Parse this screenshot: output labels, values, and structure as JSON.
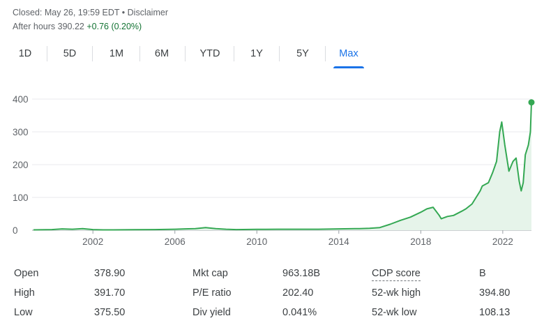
{
  "header": {
    "closed_text": "Closed: May 26, 19:59 EDT • Disclaimer",
    "after_hours_label": "After hours 390.22",
    "after_hours_change": "+0.76 (0.20%)"
  },
  "tabs": [
    {
      "label": "1D",
      "active": false
    },
    {
      "label": "5D",
      "active": false
    },
    {
      "label": "1M",
      "active": false
    },
    {
      "label": "6M",
      "active": false
    },
    {
      "label": "YTD",
      "active": false
    },
    {
      "label": "1Y",
      "active": false
    },
    {
      "label": "5Y",
      "active": false
    },
    {
      "label": "Max",
      "active": true
    }
  ],
  "colors": {
    "line": "#34a853",
    "fill": "#e6f4ea",
    "accent": "#1a73e8",
    "grid": "#e8eaed"
  },
  "chart_data": {
    "type": "area",
    "title": "",
    "xlabel": "",
    "ylabel": "",
    "ylim": [
      0,
      400
    ],
    "xlim": [
      1999.1,
      2023.4
    ],
    "y_ticks": [
      "0",
      "100",
      "200",
      "300",
      "400"
    ],
    "x_ticks": [
      "2002",
      "2006",
      "2010",
      "2014",
      "2018",
      "2022"
    ],
    "grid": true,
    "legend": "none",
    "series": [
      {
        "x": [
          1999.1,
          2000.0,
          2000.5,
          2001.0,
          2001.5,
          2002.0,
          2002.5,
          2003.0,
          2004.0,
          2005.0,
          2006.0,
          2006.5,
          2007.0,
          2007.5,
          2008.0,
          2008.5,
          2009.0,
          2010.0,
          2011.0,
          2012.0,
          2013.0,
          2014.0,
          2015.0,
          2015.5,
          2016.0,
          2016.5,
          2017.0,
          2017.5,
          2018.0,
          2018.3,
          2018.6,
          2018.9,
          2019.0,
          2019.3,
          2019.6,
          2020.0,
          2020.2,
          2020.5,
          2020.9,
          2021.0,
          2021.3,
          2021.5,
          2021.7,
          2021.85,
          2021.95,
          2022.1,
          2022.3,
          2022.5,
          2022.65,
          2022.8,
          2022.9,
          2023.0,
          2023.1,
          2023.25,
          2023.35,
          2023.4
        ],
        "values": [
          1,
          2,
          4,
          3,
          5,
          2,
          1,
          1,
          1.5,
          2,
          3,
          4,
          5,
          8,
          5,
          3,
          2,
          2.5,
          3,
          3,
          3,
          4,
          5,
          6,
          8,
          18,
          30,
          40,
          55,
          65,
          70,
          45,
          35,
          42,
          45,
          58,
          65,
          80,
          120,
          135,
          145,
          175,
          210,
          300,
          330,
          260,
          180,
          210,
          220,
          150,
          120,
          145,
          230,
          260,
          300,
          390
        ]
      }
    ],
    "last_point": {
      "x": 2023.4,
      "y": 390
    }
  },
  "stats": [
    [
      {
        "label": "Open",
        "value": "378.90"
      },
      {
        "label": "Mkt cap",
        "value": "963.18B"
      },
      {
        "label": "CDP score",
        "value": "B"
      }
    ],
    [
      {
        "label": "High",
        "value": "391.70"
      },
      {
        "label": "P/E ratio",
        "value": "202.40"
      },
      {
        "label": "52-wk high",
        "value": "394.80"
      }
    ],
    [
      {
        "label": "Low",
        "value": "375.50"
      },
      {
        "label": "Div yield",
        "value": "0.041%"
      },
      {
        "label": "52-wk low",
        "value": "108.13"
      }
    ]
  ]
}
